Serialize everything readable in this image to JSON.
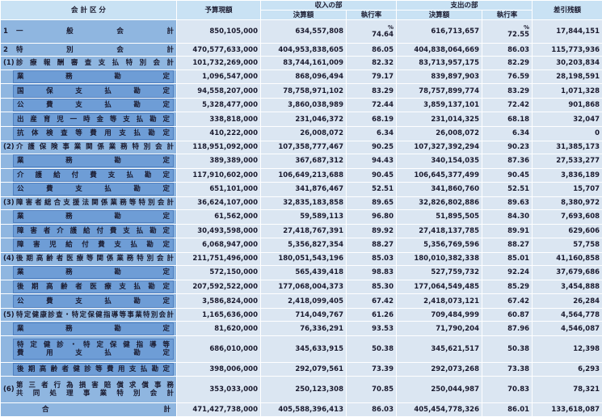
{
  "header": {
    "category": "会 計 区 分",
    "budget": "予算現額",
    "income": "収入の部",
    "expense": "支出の部",
    "amount": "決算額",
    "rate": "執行率",
    "balance": "差引残額"
  },
  "unit": "%",
  "rows": [
    {
      "no": "1",
      "label": "一 般 会 計",
      "values": [
        "850,105,000",
        "634,557,808",
        "74.64",
        "616,713,657",
        "72.55",
        "17,844,151"
      ]
    },
    {
      "no": "2",
      "label": "特 別 会 計",
      "values": [
        "470,577,633,000",
        "404,953,838,605",
        "86.05",
        "404,838,064,669",
        "86.03",
        "115,773,936"
      ]
    },
    {
      "no": "(1)",
      "label": "診療報酬審査支払特別会計",
      "values": [
        "101,732,269,000",
        "83,744,161,009",
        "82.32",
        "83,713,957,175",
        "82.29",
        "30,203,834"
      ]
    },
    {
      "label": "業 務 勘 定",
      "values": [
        "1,096,547,000",
        "868,096,494",
        "79.17",
        "839,897,903",
        "76.59",
        "28,198,591"
      ]
    },
    {
      "label": "国 保 支 払 勘 定",
      "values": [
        "94,558,207,000",
        "78,758,971,102",
        "83.29",
        "78,757,899,774",
        "83.29",
        "1,071,328"
      ]
    },
    {
      "label": "公 費 支 払 勘 定",
      "values": [
        "5,328,477,000",
        "3,860,038,989",
        "72.44",
        "3,859,137,101",
        "72.42",
        "901,868"
      ]
    },
    {
      "label": "出産育児一時金等支払勘定",
      "values": [
        "338,818,000",
        "231,046,372",
        "68.19",
        "231,014,325",
        "68.18",
        "32,047"
      ]
    },
    {
      "label": "抗体検査等費用支払勘定",
      "values": [
        "410,222,000",
        "26,008,072",
        "6.34",
        "26,008,072",
        "6.34",
        "0"
      ]
    },
    {
      "no": "(2)",
      "label": "介護保険事業関係業務特別会計",
      "values": [
        "118,951,092,000",
        "107,358,777,467",
        "90.25",
        "107,327,392,294",
        "90.23",
        "31,385,173"
      ]
    },
    {
      "label": "業 務 勘 定",
      "values": [
        "389,389,000",
        "367,687,312",
        "94.43",
        "340,154,035",
        "87.36",
        "27,533,277"
      ]
    },
    {
      "label": "介護給付費支払勘定",
      "values": [
        "117,910,602,000",
        "106,649,213,688",
        "90.45",
        "106,645,377,499",
        "90.45",
        "3,836,189"
      ]
    },
    {
      "label": "公 費 支 払 勘 定",
      "values": [
        "651,101,000",
        "341,876,467",
        "52.51",
        "341,860,760",
        "52.51",
        "15,707"
      ]
    },
    {
      "no": "(3)",
      "label": "障害者総合支援法関係業務等特別会計",
      "values": [
        "36,624,107,000",
        "32,835,183,858",
        "89.65",
        "32,826,802,886",
        "89.63",
        "8,380,972"
      ]
    },
    {
      "label": "業 務 勘 定",
      "values": [
        "61,562,000",
        "59,589,113",
        "96.80",
        "51,895,505",
        "84.30",
        "7,693,608"
      ]
    },
    {
      "label": "障害者介護給付費支払勘定",
      "values": [
        "30,493,598,000",
        "27,418,767,391",
        "89.92",
        "27,418,137,785",
        "89.91",
        "629,606"
      ]
    },
    {
      "label": "障害児給付費支払勘定",
      "values": [
        "6,068,947,000",
        "5,356,827,354",
        "88.27",
        "5,356,769,596",
        "88.27",
        "57,758"
      ]
    },
    {
      "no": "(4)",
      "label": "後期高齢者医療等関係業務特別会計",
      "values": [
        "211,751,496,000",
        "180,051,543,196",
        "85.03",
        "180,010,382,338",
        "85.01",
        "41,160,858"
      ]
    },
    {
      "label": "業 務 勘 定",
      "values": [
        "572,150,000",
        "565,439,418",
        "98.83",
        "527,759,732",
        "92.24",
        "37,679,686"
      ]
    },
    {
      "label": "後期高齢者医療支払勘定",
      "values": [
        "207,592,522,000",
        "177,068,004,373",
        "85.30",
        "177,064,549,485",
        "85.29",
        "3,454,888"
      ]
    },
    {
      "label": "公 費 支 払 勘 定",
      "values": [
        "3,586,824,000",
        "2,418,099,405",
        "67.42",
        "2,418,073,121",
        "67.42",
        "26,284"
      ]
    },
    {
      "no": "(5)",
      "label": "特定健康診査・特定保健指導等事業特別会計",
      "values": [
        "1,165,636,000",
        "714,049,767",
        "61.26",
        "709,484,999",
        "60.87",
        "4,564,778"
      ]
    },
    {
      "label": "業 務 勘 定",
      "values": [
        "81,620,000",
        "76,336,291",
        "93.53",
        "71,790,204",
        "87.96",
        "4,546,087"
      ]
    },
    {
      "label": "特定健診・特定保健指導等\n費用支払勘定",
      "values": [
        "686,010,000",
        "345,633,915",
        "50.38",
        "345,621,517",
        "50.38",
        "12,398"
      ]
    },
    {
      "label": "後期高齢者健診等費用支払勘定",
      "values": [
        "398,006,000",
        "292,079,561",
        "73.39",
        "292,073,268",
        "73.38",
        "6,293"
      ]
    },
    {
      "no": "(6)",
      "label": "第三者行為損害賠償求償事務\n共同処理事業特別会計",
      "values": [
        "353,033,000",
        "250,123,308",
        "70.85",
        "250,044,987",
        "70.83",
        "78,321"
      ]
    },
    {
      "label": "合 計",
      "values": [
        "471,427,738,000",
        "405,588,396,413",
        "86.03",
        "405,454,778,326",
        "86.01",
        "133,618,087"
      ]
    }
  ]
}
